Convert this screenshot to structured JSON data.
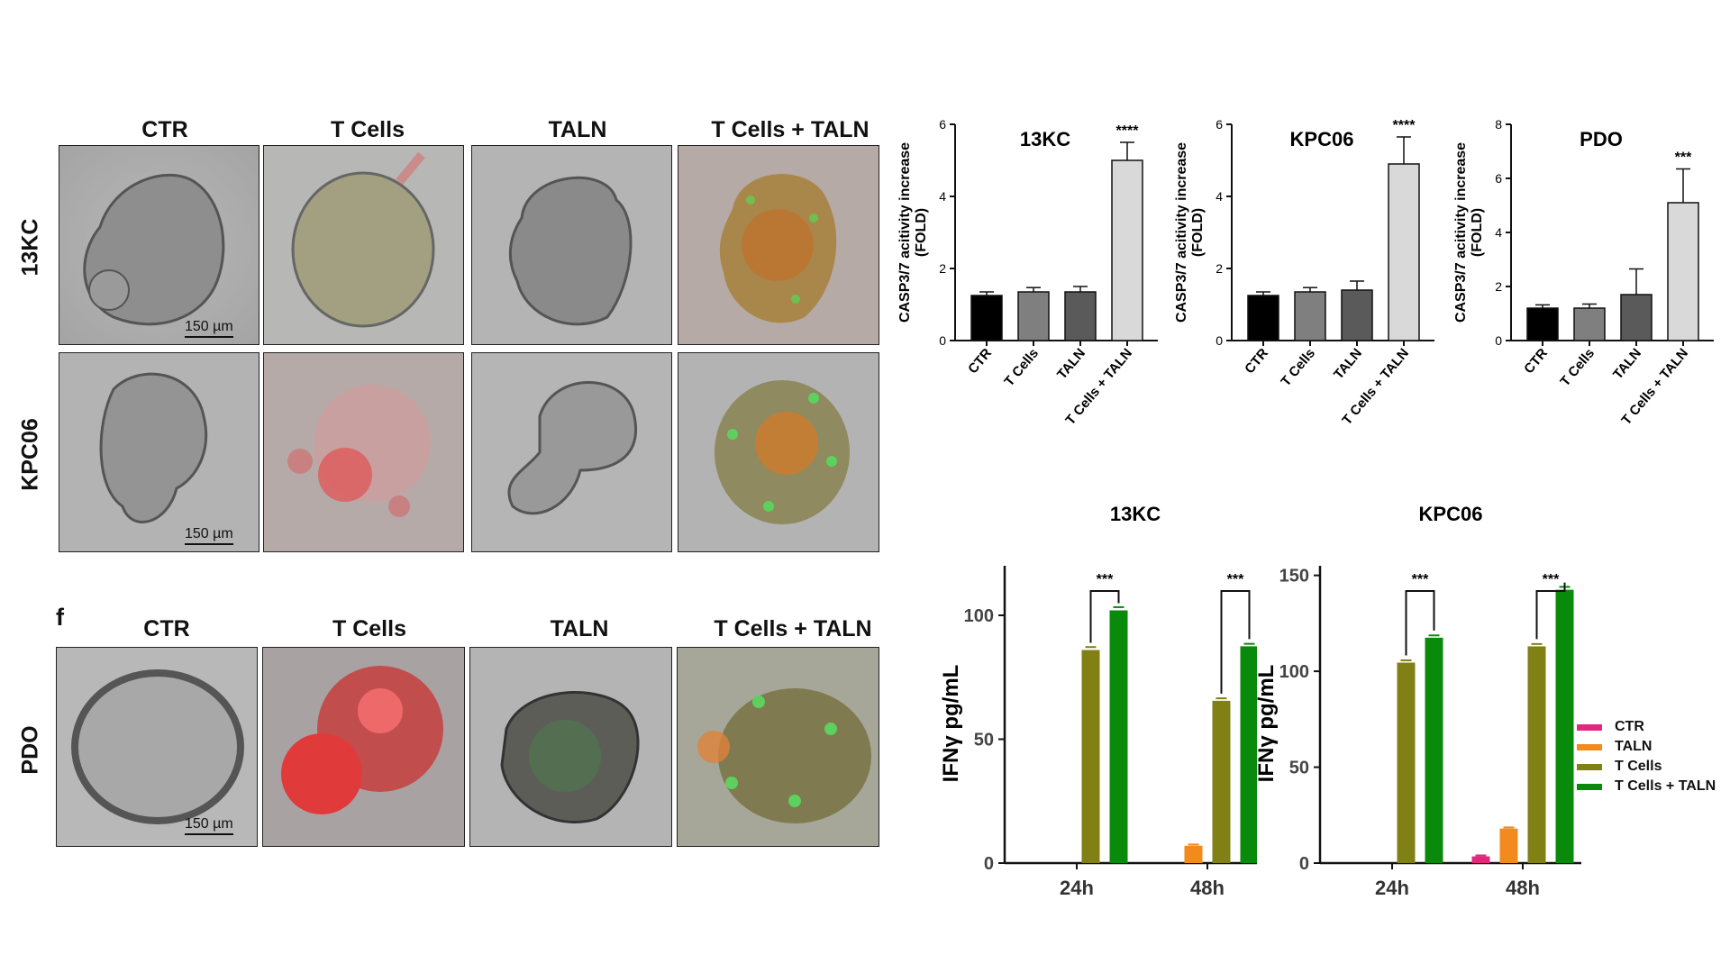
{
  "micrographs": {
    "top_columns": [
      "CTR",
      "T Cells",
      "TALN",
      "T Cells + TALN"
    ],
    "rows": [
      "13KC",
      "KPC06"
    ],
    "bottom_panel_letter": "f",
    "bottom_columns": [
      "CTR",
      "T Cells",
      "TALN",
      "T Cells + TALN"
    ],
    "bottom_row": "PDO",
    "scale_bar": "150 µm"
  },
  "chart_data": [
    {
      "type": "bar",
      "title": "13KC",
      "ylabel": "CASP3/7 acitivity increase (FOLD)",
      "categories": [
        "CTR",
        "T Cells",
        "TALN",
        "T Cells + TALN"
      ],
      "values": [
        1.25,
        1.35,
        1.35,
        5.0
      ],
      "errors": [
        0.1,
        0.12,
        0.15,
        0.5
      ],
      "colors": [
        "#000000",
        "#7f7f7f",
        "#5a5a5a",
        "#d9d9d9"
      ],
      "ylim": [
        0,
        6
      ],
      "yticks": [
        0,
        2,
        4,
        6
      ],
      "significance": "****"
    },
    {
      "type": "bar",
      "title": "KPC06",
      "ylabel": "CASP3/7 acitivity increase (FOLD)",
      "categories": [
        "CTR",
        "T Cells",
        "TALN",
        "T Cells + TALN"
      ],
      "values": [
        1.25,
        1.35,
        1.4,
        4.9
      ],
      "errors": [
        0.1,
        0.12,
        0.25,
        0.75
      ],
      "colors": [
        "#000000",
        "#7f7f7f",
        "#5a5a5a",
        "#d9d9d9"
      ],
      "ylim": [
        0,
        6
      ],
      "yticks": [
        0,
        2,
        4,
        6
      ],
      "significance": "****"
    },
    {
      "type": "bar",
      "title": "PDO",
      "ylabel": "CASP3/7 acitivity increase (FOLD)",
      "categories": [
        "CTR",
        "T Cells",
        "TALN",
        "T Cells + TALN"
      ],
      "values": [
        1.2,
        1.2,
        1.7,
        5.1
      ],
      "errors": [
        0.12,
        0.15,
        0.95,
        1.25
      ],
      "colors": [
        "#000000",
        "#7f7f7f",
        "#5a5a5a",
        "#d9d9d9"
      ],
      "ylim": [
        0,
        8
      ],
      "yticks": [
        0,
        2,
        4,
        6,
        8
      ],
      "significance": "***"
    },
    {
      "type": "bar",
      "title": "13KC",
      "ylabel": "IFNγ pg/mL",
      "groups": [
        "24h",
        "48h"
      ],
      "series": [
        {
          "name": "CTR",
          "color": "#e0287d",
          "values": [
            0,
            0
          ],
          "errors": [
            0,
            0
          ]
        },
        {
          "name": "TALN",
          "color": "#f28a1e",
          "values": [
            0,
            7
          ],
          "errors": [
            0,
            0.5
          ]
        },
        {
          "name": "T Cells",
          "color": "#808015",
          "values": [
            86,
            65.5
          ],
          "errors": [
            1.2,
            1.0
          ]
        },
        {
          "name": "T Cells + TALN",
          "color": "#0a8a0a",
          "values": [
            102,
            87.5
          ],
          "errors": [
            1.3,
            1.0
          ]
        }
      ],
      "ylim": [
        0,
        120
      ],
      "yticks": [
        0,
        50,
        100
      ],
      "significance": [
        "***",
        "***"
      ]
    },
    {
      "type": "bar",
      "title": "KPC06",
      "ylabel": "IFNγ pg/mL",
      "groups": [
        "24h",
        "48h"
      ],
      "series": [
        {
          "name": "CTR",
          "color": "#e0287d",
          "values": [
            0,
            3.5
          ],
          "errors": [
            0,
            0.5
          ]
        },
        {
          "name": "TALN",
          "color": "#f28a1e",
          "values": [
            0,
            18
          ],
          "errors": [
            0,
            0.6
          ]
        },
        {
          "name": "T Cells",
          "color": "#808015",
          "values": [
            104.5,
            113
          ],
          "errors": [
            1.2,
            1.2
          ]
        },
        {
          "name": "T Cells + TALN",
          "color": "#0a8a0a",
          "values": [
            117.5,
            142.5
          ],
          "errors": [
            1.2,
            1.5
          ]
        }
      ],
      "ylim": [
        0,
        155
      ],
      "yticks": [
        0,
        50,
        100,
        150
      ],
      "significance": [
        "***",
        "***"
      ]
    }
  ],
  "legend": [
    {
      "name": "CTR",
      "color": "#e0287d"
    },
    {
      "name": "TALN",
      "color": "#f28a1e"
    },
    {
      "name": "T Cells",
      "color": "#808015"
    },
    {
      "name": "T Cells + TALN",
      "color": "#0a8a0a"
    }
  ]
}
